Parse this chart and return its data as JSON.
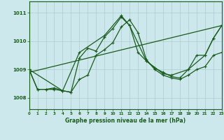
{
  "title": "Graphe pression niveau de la mer (hPa)",
  "bg_color": "#cce8ec",
  "grid_color": "#aacccc",
  "line_color": "#1a5c1a",
  "x_min": 0,
  "x_max": 23,
  "y_min": 1007.6,
  "y_max": 1011.4,
  "y_ticks": [
    1008,
    1009,
    1010,
    1011
  ],
  "x_ticks": [
    0,
    1,
    2,
    3,
    4,
    5,
    6,
    7,
    8,
    9,
    10,
    11,
    12,
    13,
    14,
    15,
    16,
    17,
    18,
    19,
    20,
    21,
    22,
    23
  ],
  "series_volatile": {
    "x": [
      0,
      1,
      2,
      3,
      4,
      5,
      6,
      7,
      8,
      9,
      10,
      11,
      12,
      13,
      14,
      15,
      16,
      17,
      18,
      19,
      20,
      21,
      22,
      23
    ],
    "y": [
      1009.0,
      1008.3,
      1008.3,
      1008.35,
      1008.25,
      1008.2,
      1009.4,
      1009.75,
      1009.65,
      1010.15,
      1010.45,
      1010.85,
      1010.55,
      1009.6,
      1009.3,
      1009.05,
      1008.9,
      1008.75,
      1008.7,
      1009.0,
      1009.5,
      1009.5,
      1010.1,
      1010.55
    ]
  },
  "series_smooth": {
    "x": [
      0,
      1,
      2,
      3,
      4,
      5,
      6,
      7,
      8,
      9,
      10,
      11,
      12,
      13,
      14,
      15,
      16,
      17,
      18,
      19,
      20,
      21,
      22,
      23
    ],
    "y": [
      1009.0,
      1008.3,
      1008.3,
      1008.3,
      1008.25,
      1008.2,
      1008.65,
      1008.8,
      1009.5,
      1009.7,
      1009.95,
      1010.5,
      1010.75,
      1010.3,
      1009.35,
      1009.0,
      1008.8,
      1008.7,
      1008.65,
      1008.8,
      1009.0,
      1009.1,
      1009.5,
      1009.6
    ]
  },
  "series_trend": {
    "x": [
      0,
      23
    ],
    "y": [
      1008.9,
      1010.55
    ]
  },
  "series_sparse": {
    "x": [
      0,
      4,
      6,
      9,
      11,
      12,
      14,
      16,
      17,
      19,
      21,
      22,
      23
    ],
    "y": [
      1009.0,
      1008.25,
      1009.6,
      1010.2,
      1010.9,
      1010.55,
      1009.3,
      1008.85,
      1008.8,
      1009.0,
      1009.5,
      1010.1,
      1010.55
    ]
  }
}
